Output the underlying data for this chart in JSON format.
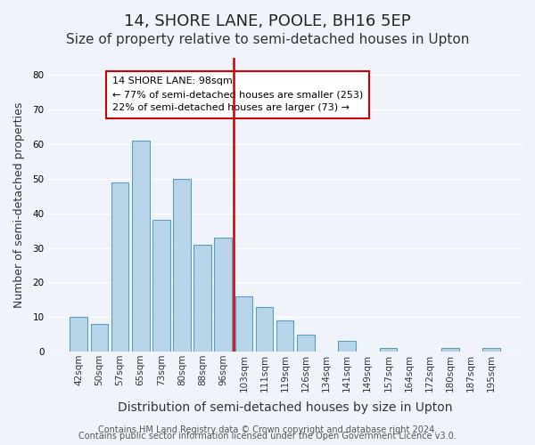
{
  "title": "14, SHORE LANE, POOLE, BH16 5EP",
  "subtitle": "Size of property relative to semi-detached houses in Upton",
  "xlabel": "Distribution of semi-detached houses by size in Upton",
  "ylabel": "Number of semi-detached properties",
  "bar_labels": [
    "42sqm",
    "50sqm",
    "57sqm",
    "65sqm",
    "73sqm",
    "80sqm",
    "88sqm",
    "96sqm",
    "103sqm",
    "111sqm",
    "119sqm",
    "126sqm",
    "134sqm",
    "141sqm",
    "149sqm",
    "157sqm",
    "164sqm",
    "172sqm",
    "180sqm",
    "187sqm",
    "195sqm"
  ],
  "bar_values": [
    10,
    8,
    49,
    61,
    38,
    50,
    31,
    33,
    16,
    13,
    9,
    5,
    0,
    3,
    0,
    1,
    0,
    0,
    1,
    0,
    1
  ],
  "bar_color": "#b8d4e8",
  "bar_edge_color": "#5a9fc0",
  "vline_x": 7.5,
  "vline_color": "#cc0000",
  "annotation_title": "14 SHORE LANE: 98sqm",
  "annotation_line1": "← 77% of semi-detached houses are smaller (253)",
  "annotation_line2": "22% of semi-detached houses are larger (73) →",
  "annotation_box_color": "#ffffff",
  "annotation_box_edge": "#cc0000",
  "ylim": [
    0,
    85
  ],
  "yticks": [
    0,
    10,
    20,
    30,
    40,
    50,
    60,
    70,
    80
  ],
  "footer1": "Contains HM Land Registry data © Crown copyright and database right 2024.",
  "footer2": "Contains public sector information licensed under the Open Government Licence v3.0.",
  "background_color": "#f0f4fa",
  "grid_color": "#ffffff",
  "title_fontsize": 13,
  "subtitle_fontsize": 11,
  "xlabel_fontsize": 10,
  "ylabel_fontsize": 9,
  "tick_fontsize": 7.5,
  "footer_fontsize": 7
}
